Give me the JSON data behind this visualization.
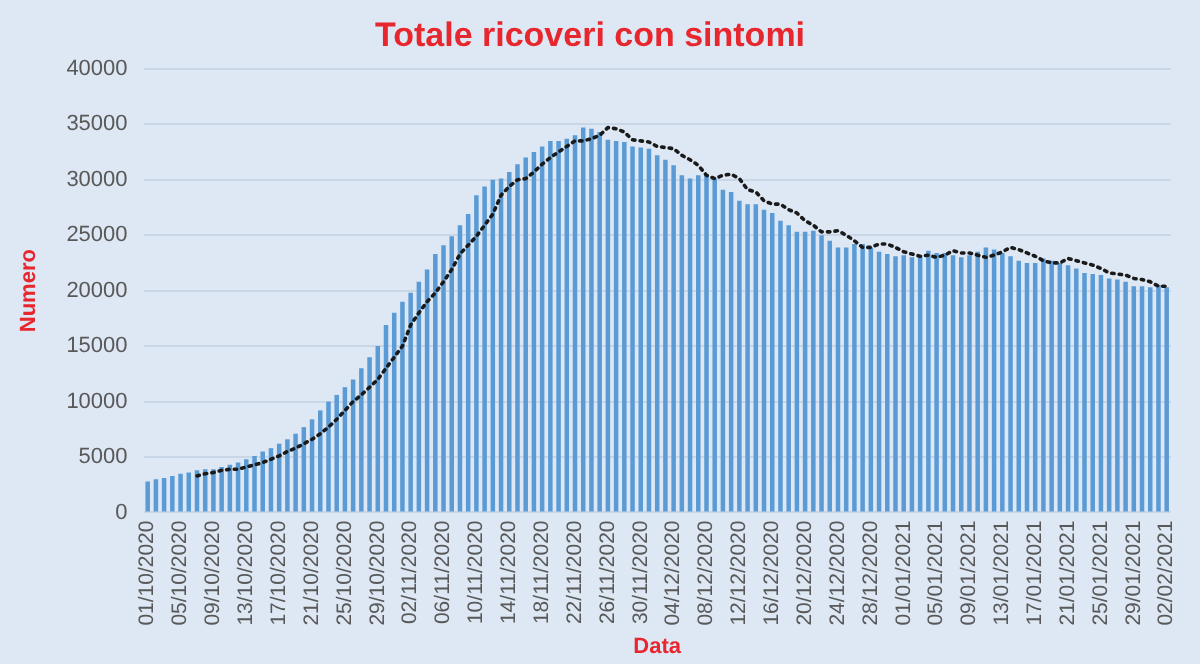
{
  "chart_data": {
    "type": "bar",
    "title": "Totale ricoveri con sintomi",
    "xlabel": "Data",
    "ylabel": "Numero",
    "categories": [
      "01/10/2020",
      null,
      null,
      null,
      "05/10/2020",
      null,
      null,
      null,
      "09/10/2020",
      null,
      null,
      null,
      "13/10/2020",
      null,
      null,
      null,
      "17/10/2020",
      null,
      null,
      null,
      "21/10/2020",
      null,
      null,
      null,
      "25/10/2020",
      null,
      null,
      null,
      "29/10/2020",
      null,
      null,
      null,
      "02/11/2020",
      null,
      null,
      null,
      "06/11/2020",
      null,
      null,
      null,
      "10/11/2020",
      null,
      null,
      null,
      "14/11/2020",
      null,
      null,
      null,
      "18/11/2020",
      null,
      null,
      null,
      "22/11/2020",
      null,
      null,
      null,
      "26/11/2020",
      null,
      null,
      null,
      "30/11/2020",
      null,
      null,
      null,
      "04/12/2020",
      null,
      null,
      null,
      "08/12/2020",
      null,
      null,
      null,
      "12/12/2020",
      null,
      null,
      null,
      "16/12/2020",
      null,
      null,
      null,
      "20/12/2020",
      null,
      null,
      null,
      "24/12/2020",
      null,
      null,
      null,
      "28/12/2020",
      null,
      null,
      null,
      "01/01/2021",
      null,
      null,
      null,
      "05/01/2021",
      null,
      null,
      null,
      "09/01/2021",
      null,
      null,
      null,
      "13/01/2021",
      null,
      null,
      null,
      "17/01/2021",
      null,
      null,
      null,
      "21/01/2021",
      null,
      null,
      null,
      "25/01/2021",
      null,
      null,
      null,
      "29/01/2021",
      null,
      null,
      null,
      "02/02/2021"
    ],
    "series": [
      {
        "color": "#5b9bd5",
        "values": [
          2800,
          3000,
          3100,
          3300,
          3500,
          3600,
          3800,
          3900,
          3900,
          4100,
          4300,
          4500,
          4800,
          5100,
          5500,
          5800,
          6200,
          6600,
          7100,
          7700,
          8400,
          9200,
          10000,
          10600,
          11300,
          12000,
          13000,
          14000,
          15000,
          16900,
          18000,
          19000,
          19800,
          20800,
          21900,
          23300,
          24100,
          24900,
          25900,
          26900,
          28600,
          29400,
          30000,
          30100,
          30700,
          31400,
          32000,
          32500,
          33000,
          33500,
          33500,
          33700,
          34000,
          34700,
          34600,
          34300,
          33600,
          33500,
          33400,
          33000,
          32900,
          32800,
          32200,
          31800,
          31300,
          30400,
          30100,
          30400,
          30500,
          30100,
          29100,
          28900,
          28100,
          27800,
          27800,
          27300,
          27000,
          26300,
          25900,
          25300,
          25300,
          25400,
          25000,
          24500,
          23900,
          23900,
          24200,
          24200,
          23900,
          23500,
          23300,
          23100,
          23200,
          23000,
          23200,
          23600,
          23400,
          23400,
          23200,
          23000,
          23200,
          23500,
          23900,
          23700,
          23400,
          23100,
          22700,
          22500,
          22500,
          22900,
          22700,
          22500,
          22300,
          22000,
          21600,
          21500,
          21400,
          21100,
          21000,
          20800,
          20400,
          20400,
          20300,
          20500,
          20300
        ]
      },
      {
        "type": "line",
        "color": "#1a1a1a",
        "marker": "none",
        "line_style": "dotted",
        "values": [
          null,
          null,
          null,
          null,
          null,
          null,
          3300,
          3500,
          3600,
          3800,
          3900,
          3900,
          4100,
          4300,
          4500,
          4800,
          5100,
          5500,
          5800,
          6200,
          6600,
          7100,
          7700,
          8400,
          9200,
          10000,
          10600,
          11300,
          12000,
          13000,
          14000,
          15000,
          16900,
          18000,
          19000,
          19800,
          20800,
          21900,
          23300,
          24100,
          24900,
          25900,
          26900,
          28600,
          29400,
          30000,
          30100,
          30700,
          31400,
          32000,
          32500,
          33000,
          33500,
          33500,
          33700,
          34000,
          34700,
          34600,
          34300,
          33600,
          33500,
          33400,
          33000,
          32900,
          32800,
          32200,
          31800,
          31300,
          30400,
          30100,
          30400,
          30500,
          30100,
          29100,
          28900,
          28100,
          27800,
          27800,
          27300,
          27000,
          26300,
          25900,
          25300,
          25300,
          25400,
          25000,
          24500,
          23900,
          23900,
          24200,
          24200,
          23900,
          23500,
          23300,
          23100,
          23200,
          23000,
          23200,
          23600,
          23400,
          23400,
          23200,
          23000,
          23200,
          23500,
          23900,
          23700,
          23400,
          23100,
          22700,
          22500,
          22500,
          22900,
          22700,
          22500,
          22300,
          22000,
          21600,
          21500,
          21400,
          21100,
          21000,
          20800,
          20400,
          20400
        ]
      }
    ],
    "ylim": [
      0,
      40000
    ],
    "yticks": [
      0,
      5000,
      10000,
      15000,
      20000,
      25000,
      30000,
      35000,
      40000
    ],
    "grid": "y",
    "legend": false
  }
}
